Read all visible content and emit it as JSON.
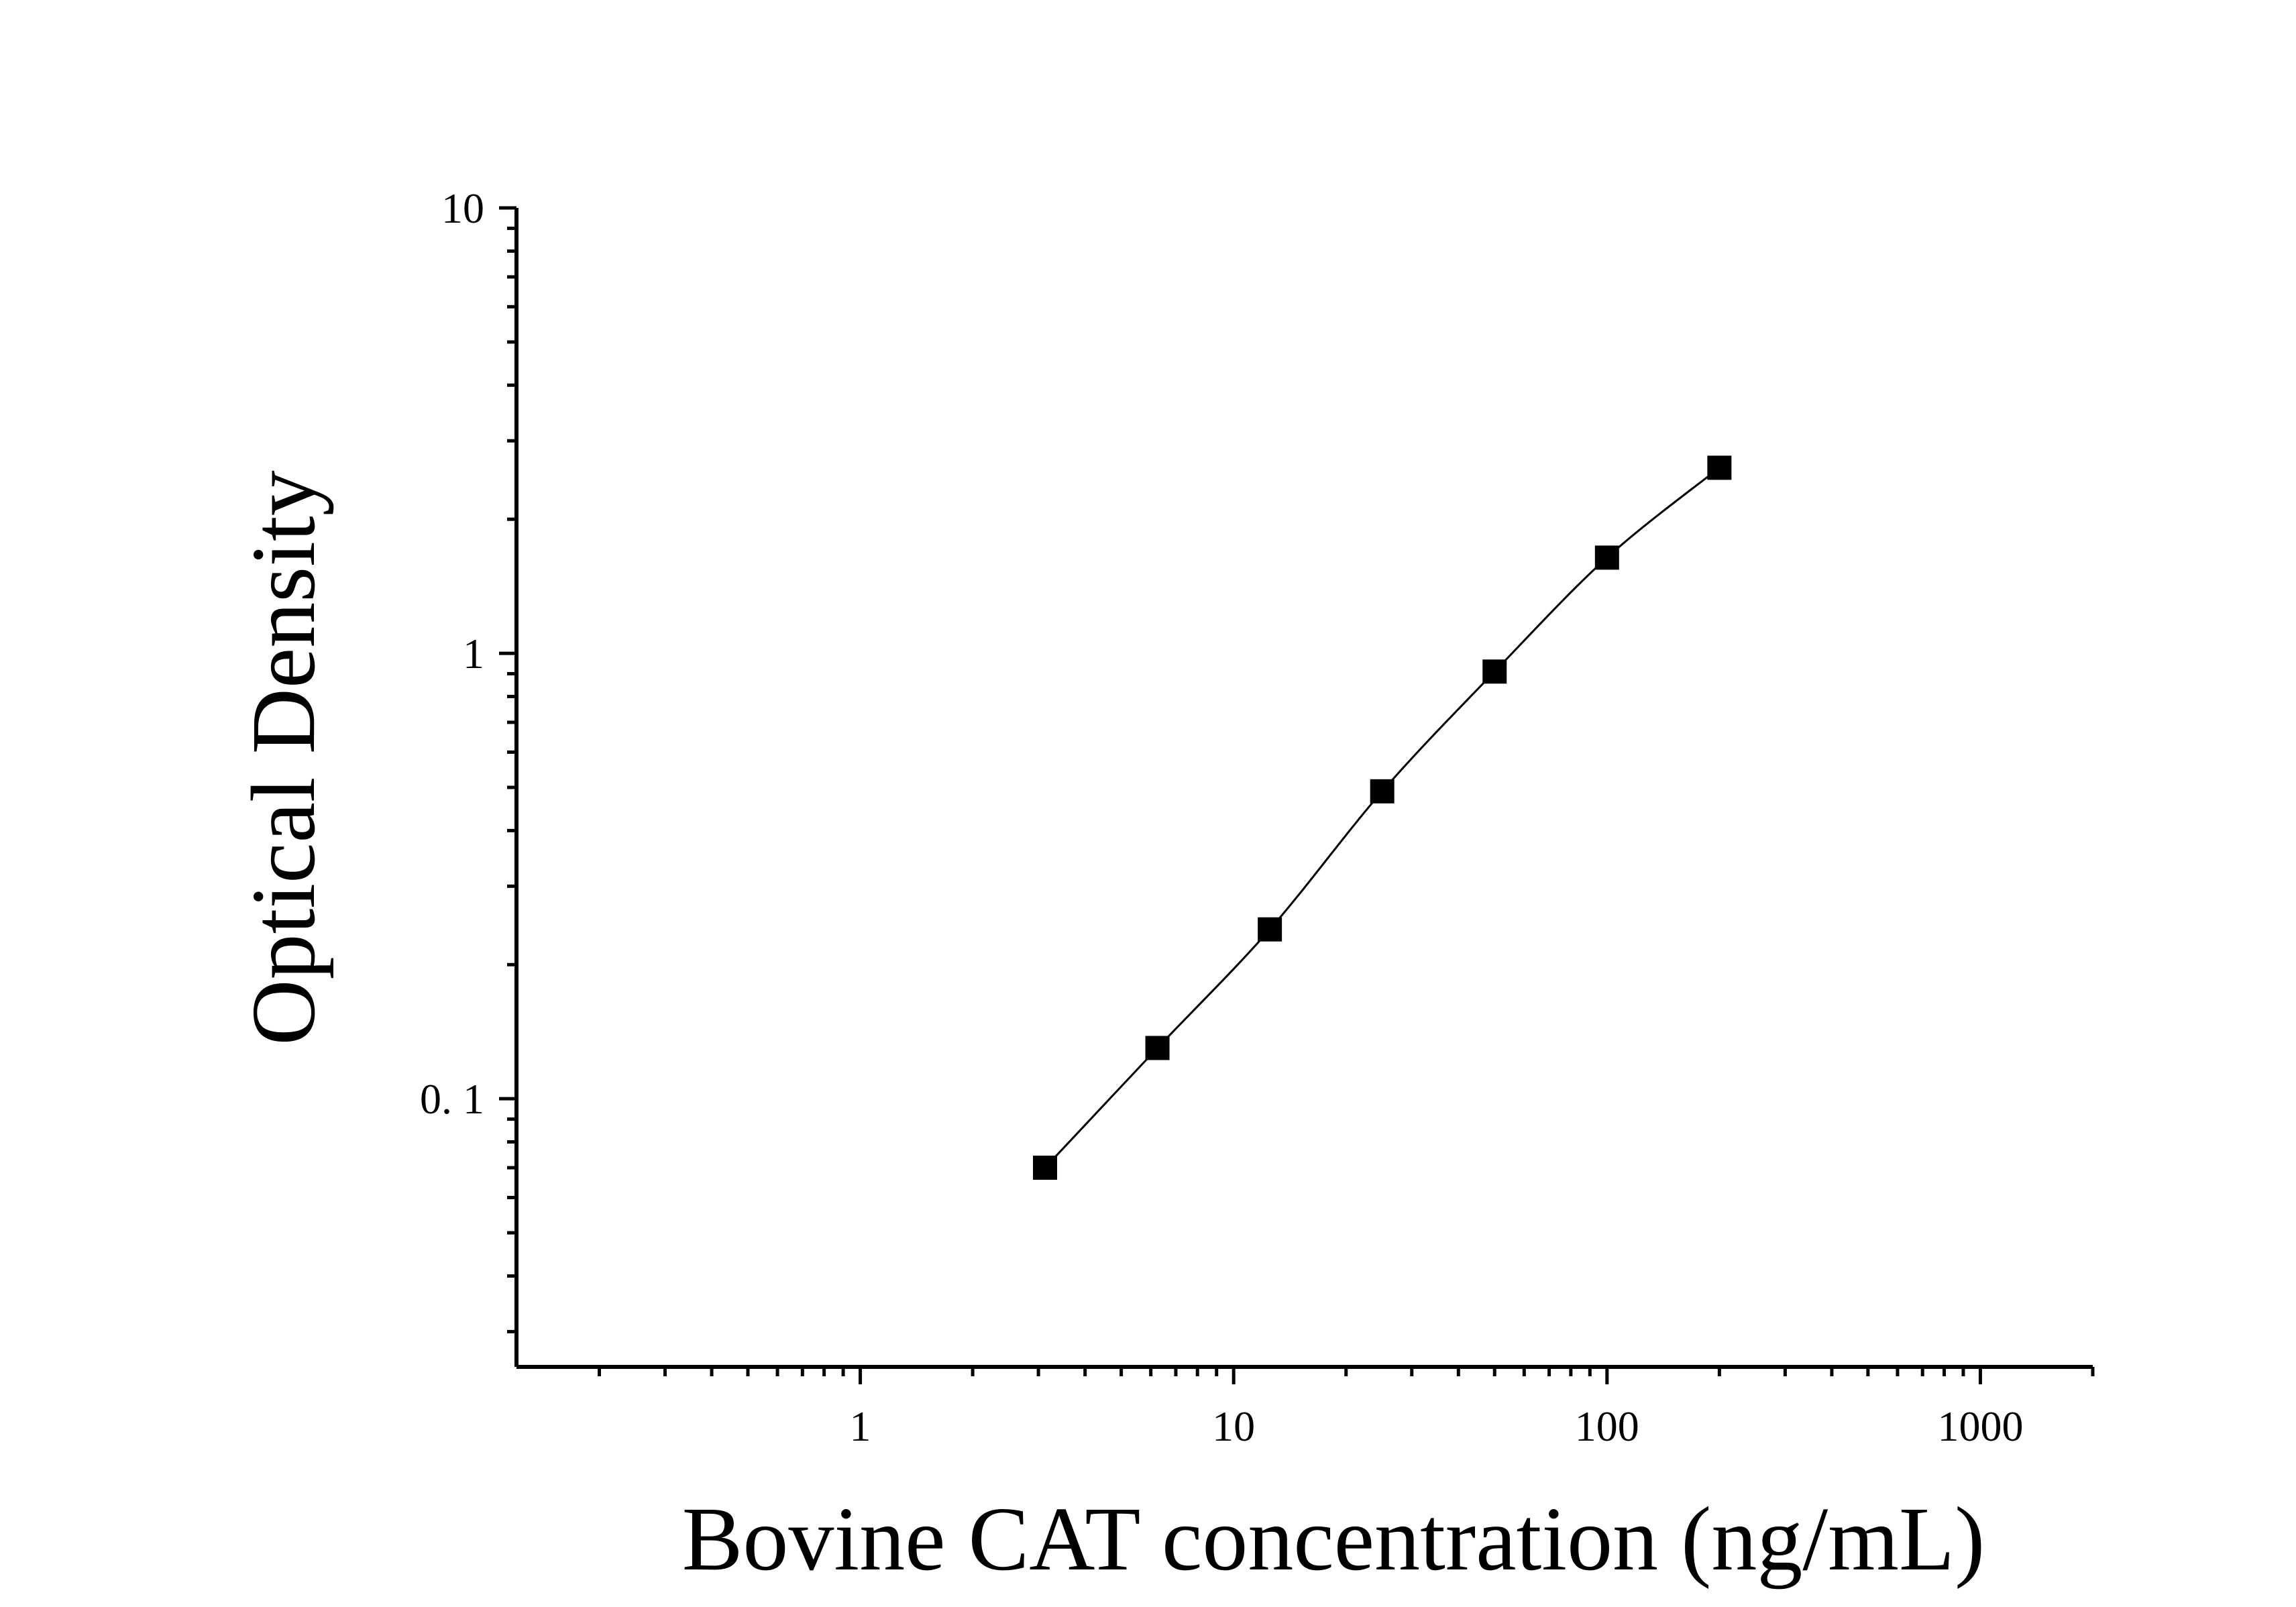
{
  "chart_data": {
    "type": "scatter",
    "title": "",
    "xlabel": "Bovine CAT concentration (ng/mL)",
    "ylabel": "Optical Density",
    "x_scale": "log",
    "y_scale": "log",
    "xlim": [
      0.12,
      2000
    ],
    "ylim": [
      0.025,
      10
    ],
    "x_ticks": [
      {
        "value": 1,
        "label": "1"
      },
      {
        "value": 10,
        "label": "10"
      },
      {
        "value": 100,
        "label": "100"
      },
      {
        "value": 1000,
        "label": "1000"
      }
    ],
    "y_ticks": [
      {
        "value": 0.1,
        "label": "0. 1"
      },
      {
        "value": 1,
        "label": "1"
      },
      {
        "value": 10,
        "label": "10"
      }
    ],
    "grid": false,
    "legend": "none",
    "marker": "square",
    "line": "smooth",
    "color": "#000000",
    "series": [
      {
        "x": [
          3.125,
          6.25,
          12.5,
          25,
          50,
          100,
          200
        ],
        "y": [
          0.07,
          0.13,
          0.24,
          0.49,
          0.91,
          1.64,
          2.61
        ]
      }
    ]
  }
}
